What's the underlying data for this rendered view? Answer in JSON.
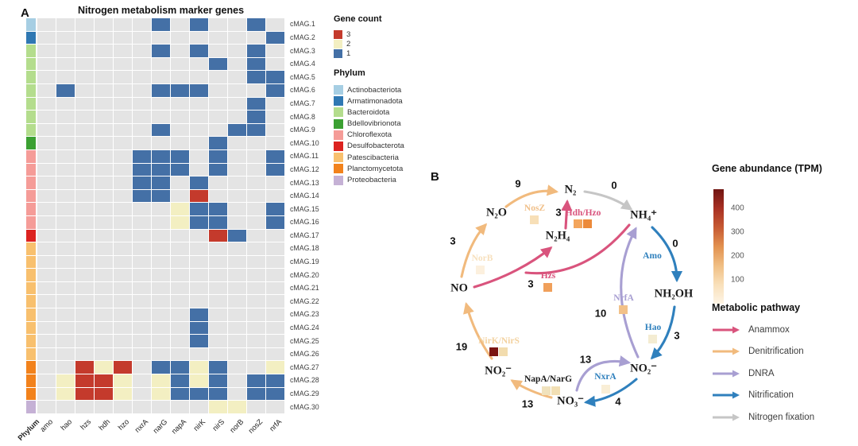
{
  "panel_a": {
    "label": "A",
    "title": "Nitrogen metabolism marker genes",
    "phylum_axis_label": "Phylum",
    "cell_bg": "#e4e4e4",
    "gene_count_legend": {
      "title": "Gene count",
      "items": [
        {
          "label": "3",
          "color": "#c43a2c"
        },
        {
          "label": "2",
          "color": "#f3efc2"
        },
        {
          "label": "1",
          "color": "#4470a6"
        }
      ]
    },
    "phylum_legend": {
      "title": "Phylum",
      "items": [
        {
          "label": "Actinobacteriota",
          "color": "#a6cee3"
        },
        {
          "label": "Armatimonadota",
          "color": "#2f78b3"
        },
        {
          "label": "Bacteroidota",
          "color": "#b4dd8d"
        },
        {
          "label": "Bdellovibrionota",
          "color": "#3ba032"
        },
        {
          "label": "Chloroflexota",
          "color": "#f59c98"
        },
        {
          "label": "Desulfobacterota",
          "color": "#dc2320"
        },
        {
          "label": "Patescibacteria",
          "color": "#f8c06e"
        },
        {
          "label": "Planctomycetota",
          "color": "#f2821c"
        },
        {
          "label": "Proteobacteria",
          "color": "#c5b1d5"
        }
      ]
    }
  },
  "chart_data": {
    "type": "heatmap",
    "title": "Nitrogen metabolism marker genes",
    "x_categories": [
      "amo",
      "hao",
      "hzs",
      "hdh",
      "hzo",
      "nxrA",
      "narG",
      "napA",
      "nirK",
      "nirS",
      "norB",
      "nosZ",
      "nrfA"
    ],
    "value_legend": {
      "title": "Gene count",
      "values": [
        3,
        2,
        1
      ]
    },
    "rows": [
      {
        "name": "cMAG.1",
        "phylum": "Actinobacteriota",
        "genes": {
          "narG": 1,
          "nirK": 1,
          "nosZ": 1
        }
      },
      {
        "name": "cMAG.2",
        "phylum": "Armatimonadota",
        "genes": {
          "nrfA": 1
        }
      },
      {
        "name": "cMAG.3",
        "phylum": "Bacteroidota",
        "genes": {
          "narG": 1,
          "nirK": 1,
          "nosZ": 1
        }
      },
      {
        "name": "cMAG.4",
        "phylum": "Bacteroidota",
        "genes": {
          "nirS": 1,
          "nosZ": 1
        }
      },
      {
        "name": "cMAG.5",
        "phylum": "Bacteroidota",
        "genes": {
          "nosZ": 1,
          "nrfA": 1
        }
      },
      {
        "name": "cMAG.6",
        "phylum": "Bacteroidota",
        "genes": {
          "hao": 1,
          "narG": 1,
          "napA": 1,
          "nirK": 1,
          "nrfA": 1
        }
      },
      {
        "name": "cMAG.7",
        "phylum": "Bacteroidota",
        "genes": {
          "nosZ": 1
        }
      },
      {
        "name": "cMAG.8",
        "phylum": "Bacteroidota",
        "genes": {
          "nosZ": 1
        }
      },
      {
        "name": "cMAG.9",
        "phylum": "Bacteroidota",
        "genes": {
          "narG": 1,
          "norB": 1,
          "nosZ": 1
        }
      },
      {
        "name": "cMAG.10",
        "phylum": "Bdellovibrionota",
        "genes": {
          "nirS": 1
        }
      },
      {
        "name": "cMAG.11",
        "phylum": "Chloroflexota",
        "genes": {
          "nxrA": 1,
          "narG": 1,
          "napA": 1,
          "nirS": 1,
          "nrfA": 1
        }
      },
      {
        "name": "cMAG.12",
        "phylum": "Chloroflexota",
        "genes": {
          "nxrA": 1,
          "narG": 1,
          "napA": 1,
          "nirS": 1,
          "nrfA": 1
        }
      },
      {
        "name": "cMAG.13",
        "phylum": "Chloroflexota",
        "genes": {
          "nxrA": 1,
          "narG": 1,
          "nirK": 1
        }
      },
      {
        "name": "cMAG.14",
        "phylum": "Chloroflexota",
        "genes": {
          "nxrA": 1,
          "narG": 1,
          "nirK": 3
        }
      },
      {
        "name": "cMAG.15",
        "phylum": "Chloroflexota",
        "genes": {
          "napA": 2,
          "nirK": 1,
          "nirS": 1,
          "nrfA": 1
        }
      },
      {
        "name": "cMAG.16",
        "phylum": "Chloroflexota",
        "genes": {
          "napA": 2,
          "nirK": 1,
          "nirS": 1,
          "nrfA": 1
        }
      },
      {
        "name": "cMAG.17",
        "phylum": "Desulfobacterota",
        "genes": {
          "nirS": 3,
          "norB": 1
        }
      },
      {
        "name": "cMAG.18",
        "phylum": "Patescibacteria",
        "genes": {}
      },
      {
        "name": "cMAG.19",
        "phylum": "Patescibacteria",
        "genes": {}
      },
      {
        "name": "cMAG.20",
        "phylum": "Patescibacteria",
        "genes": {}
      },
      {
        "name": "cMAG.21",
        "phylum": "Patescibacteria",
        "genes": {}
      },
      {
        "name": "cMAG.22",
        "phylum": "Patescibacteria",
        "genes": {}
      },
      {
        "name": "cMAG.23",
        "phylum": "Patescibacteria",
        "genes": {
          "nirK": 1
        }
      },
      {
        "name": "cMAG.24",
        "phylum": "Patescibacteria",
        "genes": {
          "nirK": 1
        }
      },
      {
        "name": "cMAG.25",
        "phylum": "Patescibacteria",
        "genes": {
          "nirK": 1
        }
      },
      {
        "name": "cMAG.26",
        "phylum": "Patescibacteria",
        "genes": {}
      },
      {
        "name": "cMAG.27",
        "phylum": "Planctomycetota",
        "genes": {
          "hzs": 3,
          "hdh": 2,
          "hzo": 3,
          "narG": 1,
          "napA": 1,
          "nirK": 2,
          "nirS": 1,
          "nrfA": 2
        }
      },
      {
        "name": "cMAG.28",
        "phylum": "Planctomycetota",
        "genes": {
          "hao": 2,
          "hzs": 3,
          "hdh": 3,
          "hzo": 2,
          "narG": 2,
          "napA": 1,
          "nirK": 2,
          "nirS": 1,
          "nosZ": 1,
          "nrfA": 1
        }
      },
      {
        "name": "cMAG.29",
        "phylum": "Planctomycetota",
        "genes": {
          "hao": 2,
          "hzs": 3,
          "hdh": 3,
          "hzo": 2,
          "narG": 2,
          "napA": 1,
          "nirK": 1,
          "nirS": 1,
          "nosZ": 1,
          "nrfA": 1
        }
      },
      {
        "name": "cMAG.30",
        "phylum": "Proteobacteria",
        "genes": {
          "nirS": 2,
          "norB": 2
        }
      }
    ]
  },
  "panel_b": {
    "label": "B",
    "nodes": {
      "n2": "N₂",
      "n2o": "N₂O",
      "nh4": "NH₄⁺",
      "n2h4": "N₂H₄",
      "no": "NO",
      "nh2oh": "NH₂OH",
      "no2_left": "NO₂⁻",
      "no3": "NO₃⁻",
      "no2_right": "NO₂⁻"
    },
    "edges": {
      "nosz": {
        "enzyme": "NosZ",
        "count": "9",
        "color": "#f0c08a",
        "pathway": "denitrification"
      },
      "fixation": {
        "count": "0",
        "pathway": "fixation"
      },
      "hdh_hzo": {
        "enzyme": "Hdh/Hzo",
        "count": "3",
        "color": "#d9547d",
        "pathway": "anammox"
      },
      "norb": {
        "enzyme": "NorB",
        "count": "3",
        "color": "#f7e0bd",
        "pathway": "denitrification"
      },
      "amo": {
        "enzyme": "Amo",
        "count": "0",
        "color": "#2f80bd",
        "pathway": "nitrification"
      },
      "hzs": {
        "enzyme": "Hzs",
        "count": "3",
        "color": "#d9547d",
        "pathway": "anammox"
      },
      "nrfa": {
        "enzyme": "NrfA",
        "count": "10",
        "color": "#a89fd2",
        "pathway": "dnra"
      },
      "hao": {
        "enzyme": "Hao",
        "count": "3",
        "color": "#2f80bd",
        "pathway": "nitrification"
      },
      "nirk_nirs": {
        "enzyme": "NirK/NirS",
        "count": "19",
        "color": "#f3d2a0",
        "pathway": "denitrification"
      },
      "dnra_no3_no2": {
        "count": "13",
        "pathway": "dnra"
      },
      "napa_narg": {
        "enzyme": "NapA/NarG",
        "count": "13",
        "color": "#1a1a1a",
        "pathway": "denitrification"
      },
      "nxra": {
        "enzyme": "NxrA",
        "count": "4",
        "color": "#2f80bd",
        "pathway": "nitrification"
      }
    },
    "pathway_colors": {
      "anammox": "#d9547d",
      "denitrification": "#f1ba7d",
      "dnra": "#a89fd2",
      "nitrification": "#2f80bd",
      "fixation": "#c6c6c6"
    },
    "tpm_squares": {
      "nosz": [
        "#f7dfb7"
      ],
      "hdh_hzo": [
        "#f3a55c",
        "#ec8a3a"
      ],
      "norb": [
        "#fcf0de"
      ],
      "hzs": [
        "#f0a05b"
      ],
      "nrfa": [
        "#f2c189"
      ],
      "hao": [
        "#f4ecd2"
      ],
      "nirk_nirs": [
        "#7a1411",
        "#f2dcae"
      ],
      "napa_narg": [
        "#f0e2bd",
        "#f2dfb4"
      ],
      "nxra": [
        "#f9eed6"
      ]
    },
    "abundance_legend": {
      "title": "Gene abundance (TPM)",
      "ticks": [
        "400",
        "300",
        "200",
        "100"
      ],
      "gradient": [
        "#701512",
        "#a83023",
        "#c65a33",
        "#e2914f",
        "#f0be83",
        "#f9e0ba",
        "#fdf4e5"
      ]
    },
    "pathway_legend": {
      "title": "Metabolic pathway",
      "items": [
        {
          "label": "Anammox",
          "color": "#d9547d"
        },
        {
          "label": "Denitrification",
          "color": "#f1ba7d"
        },
        {
          "label": "DNRA",
          "color": "#a89fd2"
        },
        {
          "label": "Nitrification",
          "color": "#2f80bd"
        },
        {
          "label": "Nitrogen fixation",
          "color": "#c6c6c6"
        }
      ]
    }
  }
}
